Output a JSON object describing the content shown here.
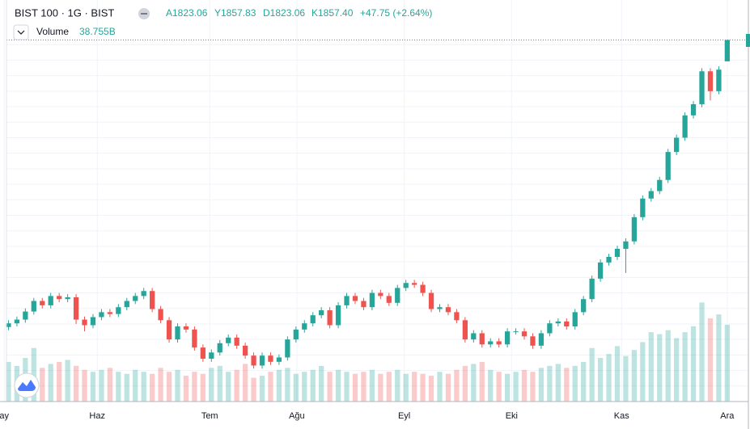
{
  "chart_data": {
    "type": "candlestick",
    "title": "BIST 100 · 1G · BIST",
    "legend": {
      "ohlc": [
        "A1823.06",
        "Y1857.83",
        "D1823.06",
        "K1857.40"
      ],
      "change": "+47.75 (+2.64%)",
      "volume_name": "Volume",
      "volume_value": "38.755B"
    },
    "up_color": "#26a69a",
    "down_color": "#ef5350",
    "open": [
      1395,
      1401,
      1407,
      1420,
      1437,
      1430,
      1445,
      1440,
      1443,
      1407,
      1398,
      1411,
      1419,
      1416,
      1427,
      1437,
      1445,
      1453,
      1424,
      1406,
      1375,
      1396,
      1391,
      1362,
      1344,
      1354,
      1369,
      1378,
      1365,
      1349,
      1333,
      1349,
      1339,
      1346,
      1375,
      1391,
      1401,
      1414,
      1422,
      1398,
      1430,
      1445,
      1437,
      1427,
      1450,
      1445,
      1434,
      1458,
      1466,
      1463,
      1450,
      1424,
      1427,
      1419,
      1406,
      1375,
      1385,
      1367,
      1372,
      1367,
      1388,
      1388,
      1380,
      1365,
      1385,
      1401,
      1404,
      1396,
      1419,
      1440,
      1473,
      1499,
      1508,
      1521,
      1533,
      1572,
      1602,
      1614,
      1632,
      1677,
      1700,
      1736,
      1754,
      1807,
      1775,
      1823.06
    ],
    "high": [
      1406,
      1412,
      1425,
      1442,
      1442,
      1450,
      1450,
      1448,
      1448,
      1412,
      1416,
      1424,
      1424,
      1432,
      1442,
      1450,
      1458,
      1458,
      1429,
      1411,
      1401,
      1401,
      1396,
      1367,
      1359,
      1374,
      1383,
      1383,
      1370,
      1354,
      1354,
      1354,
      1351,
      1380,
      1396,
      1406,
      1419,
      1427,
      1427,
      1435,
      1450,
      1450,
      1442,
      1455,
      1455,
      1450,
      1463,
      1471,
      1471,
      1468,
      1455,
      1432,
      1432,
      1424,
      1411,
      1390,
      1390,
      1377,
      1377,
      1393,
      1393,
      1393,
      1385,
      1390,
      1406,
      1409,
      1409,
      1424,
      1445,
      1478,
      1504,
      1513,
      1526,
      1538,
      1577,
      1607,
      1619,
      1637,
      1682,
      1705,
      1741,
      1759,
      1812,
      1812,
      1815,
      1857.83
    ],
    "low": [
      1390,
      1396,
      1402,
      1415,
      1425,
      1425,
      1435,
      1435,
      1400,
      1388,
      1393,
      1406,
      1411,
      1411,
      1422,
      1432,
      1440,
      1419,
      1401,
      1370,
      1370,
      1386,
      1357,
      1339,
      1339,
      1349,
      1364,
      1360,
      1344,
      1328,
      1328,
      1334,
      1334,
      1341,
      1370,
      1386,
      1396,
      1409,
      1393,
      1393,
      1425,
      1432,
      1422,
      1422,
      1440,
      1429,
      1429,
      1453,
      1458,
      1445,
      1419,
      1419,
      1414,
      1401,
      1370,
      1370,
      1362,
      1362,
      1362,
      1362,
      1383,
      1375,
      1360,
      1360,
      1380,
      1396,
      1391,
      1391,
      1414,
      1435,
      1468,
      1494,
      1503,
      1482,
      1528,
      1567,
      1597,
      1609,
      1627,
      1672,
      1695,
      1731,
      1749,
      1760,
      1770,
      1823.06
    ],
    "close": [
      1401,
      1407,
      1420,
      1437,
      1430,
      1445,
      1440,
      1443,
      1407,
      1398,
      1411,
      1419,
      1416,
      1427,
      1437,
      1445,
      1453,
      1424,
      1406,
      1375,
      1396,
      1391,
      1362,
      1344,
      1354,
      1369,
      1378,
      1365,
      1349,
      1333,
      1349,
      1339,
      1346,
      1375,
      1391,
      1401,
      1414,
      1422,
      1398,
      1430,
      1445,
      1437,
      1427,
      1450,
      1445,
      1434,
      1458,
      1466,
      1463,
      1450,
      1424,
      1427,
      1419,
      1406,
      1375,
      1385,
      1367,
      1372,
      1367,
      1388,
      1388,
      1380,
      1365,
      1385,
      1401,
      1404,
      1396,
      1419,
      1440,
      1473,
      1499,
      1508,
      1521,
      1533,
      1572,
      1602,
      1614,
      1632,
      1677,
      1700,
      1736,
      1754,
      1807,
      1775,
      1809.65,
      1857.4
    ],
    "volume": [
      20,
      18,
      22,
      27,
      17,
      19,
      20,
      21,
      18,
      16,
      15,
      16,
      17,
      15,
      14,
      16,
      15,
      14,
      17,
      15,
      16,
      13,
      15,
      14,
      17,
      18,
      15,
      16,
      19,
      12,
      13,
      15,
      16,
      17,
      14,
      15,
      16,
      18,
      15,
      16,
      15,
      14,
      15,
      16,
      14,
      15,
      16,
      14,
      15,
      14,
      13,
      15,
      14,
      16,
      18,
      19,
      20,
      16,
      15,
      14,
      15,
      16,
      15,
      17,
      18,
      19,
      17,
      18,
      20,
      27,
      22,
      24,
      28,
      23,
      26,
      30,
      35,
      34,
      36,
      32,
      35,
      38,
      50,
      42,
      44,
      38.755
    ],
    "ylim": [
      1275,
      1875
    ],
    "yticks": [
      1300,
      1325,
      1350,
      1375,
      1400,
      1425,
      1450,
      1475,
      1500,
      1525,
      1550,
      1575,
      1600,
      1625,
      1650,
      1675,
      1700,
      1725,
      1750,
      1775,
      1800,
      1825,
      1850
    ],
    "y2lim": [
      0,
      188
    ],
    "xlim": [
      -1,
      87.5
    ],
    "xticks": [
      {
        "value": -0.5,
        "label": "ay"
      },
      {
        "value": 10.5,
        "label": "Haz"
      },
      {
        "value": 23.8,
        "label": "Tem"
      },
      {
        "value": 34.1,
        "label": "Ağu"
      },
      {
        "value": 46.8,
        "label": "Eyl"
      },
      {
        "value": 59.5,
        "label": "Eki"
      },
      {
        "value": 72.5,
        "label": "Kas"
      },
      {
        "value": 85,
        "label": "Ara"
      }
    ],
    "grid": true
  }
}
